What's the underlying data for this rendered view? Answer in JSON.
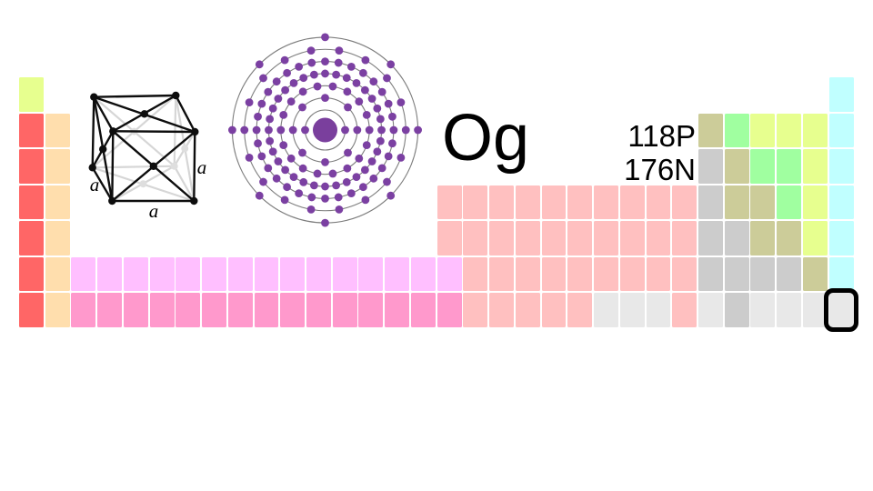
{
  "background": "#ffffff",
  "element": {
    "symbol": "Og",
    "proton_count": "118P",
    "neutron_count": "176N"
  },
  "bohr_model": {
    "shells": [
      2,
      8,
      18,
      32,
      32,
      18,
      8
    ],
    "nucleus_color": "#7a3f9d",
    "electron_color": "#7b40a2",
    "orbit_color": "#7d7d7d"
  },
  "crystal_structure": {
    "edge_labels": [
      "a",
      "a",
      "a"
    ],
    "visible_line_color": "#0d0d0d",
    "hidden_line_color": "#d6d6d6"
  },
  "periodic_table": {
    "columns": 32,
    "periods": 7,
    "category_colors": {
      "diatomic-nonmetal": "#e7ff8f",
      "alkali-metal": "#ff6666",
      "alkaline-earth-metal": "#ffdead",
      "lanthanide": "#ffbfff",
      "actinide": "#ff99cc",
      "transition-metal": "#ffc0c0",
      "post-transition-metal": "#cccccc",
      "metalloid": "#cccc99",
      "polyatomic-nonmetal": "#a0ffa0",
      "noble-gas": "#c0ffff",
      "unknown": "#e8e8e8"
    },
    "rows": [
      {
        "period": 1,
        "runs": [
          [
            1,
            1,
            "diatomic-nonmetal"
          ],
          [
            32,
            32,
            "noble-gas"
          ]
        ]
      },
      {
        "period": 2,
        "runs": [
          [
            1,
            1,
            "alkali-metal"
          ],
          [
            2,
            2,
            "alkaline-earth-metal"
          ],
          [
            27,
            27,
            "metalloid"
          ],
          [
            28,
            28,
            "polyatomic-nonmetal"
          ],
          [
            29,
            31,
            "diatomic-nonmetal"
          ],
          [
            32,
            32,
            "noble-gas"
          ]
        ]
      },
      {
        "period": 3,
        "runs": [
          [
            1,
            1,
            "alkali-metal"
          ],
          [
            2,
            2,
            "alkaline-earth-metal"
          ],
          [
            27,
            27,
            "post-transition-metal"
          ],
          [
            28,
            28,
            "metalloid"
          ],
          [
            29,
            30,
            "polyatomic-nonmetal"
          ],
          [
            31,
            31,
            "diatomic-nonmetal"
          ],
          [
            32,
            32,
            "noble-gas"
          ]
        ]
      },
      {
        "period": 4,
        "runs": [
          [
            1,
            1,
            "alkali-metal"
          ],
          [
            2,
            2,
            "alkaline-earth-metal"
          ],
          [
            17,
            26,
            "transition-metal"
          ],
          [
            27,
            27,
            "post-transition-metal"
          ],
          [
            28,
            29,
            "metalloid"
          ],
          [
            30,
            30,
            "polyatomic-nonmetal"
          ],
          [
            31,
            31,
            "diatomic-nonmetal"
          ],
          [
            32,
            32,
            "noble-gas"
          ]
        ]
      },
      {
        "period": 5,
        "runs": [
          [
            1,
            1,
            "alkali-metal"
          ],
          [
            2,
            2,
            "alkaline-earth-metal"
          ],
          [
            17,
            26,
            "transition-metal"
          ],
          [
            27,
            28,
            "post-transition-metal"
          ],
          [
            29,
            30,
            "metalloid"
          ],
          [
            31,
            31,
            "diatomic-nonmetal"
          ],
          [
            32,
            32,
            "noble-gas"
          ]
        ]
      },
      {
        "period": 6,
        "runs": [
          [
            1,
            1,
            "alkali-metal"
          ],
          [
            2,
            2,
            "alkaline-earth-metal"
          ],
          [
            3,
            17,
            "lanthanide"
          ],
          [
            18,
            26,
            "transition-metal"
          ],
          [
            27,
            30,
            "post-transition-metal"
          ],
          [
            31,
            31,
            "metalloid"
          ],
          [
            32,
            32,
            "noble-gas"
          ]
        ]
      },
      {
        "period": 7,
        "runs": [
          [
            1,
            1,
            "alkali-metal"
          ],
          [
            2,
            2,
            "alkaline-earth-metal"
          ],
          [
            3,
            17,
            "actinide"
          ],
          [
            18,
            22,
            "transition-metal"
          ],
          [
            23,
            25,
            "unknown"
          ],
          [
            26,
            26,
            "transition-metal"
          ],
          [
            27,
            27,
            "unknown"
          ],
          [
            28,
            28,
            "post-transition-metal"
          ],
          [
            29,
            31,
            "unknown"
          ],
          [
            32,
            32,
            "unknown"
          ]
        ]
      }
    ],
    "highlight_cell": {
      "period": 7,
      "column": 32,
      "border_color": "#000000"
    }
  }
}
